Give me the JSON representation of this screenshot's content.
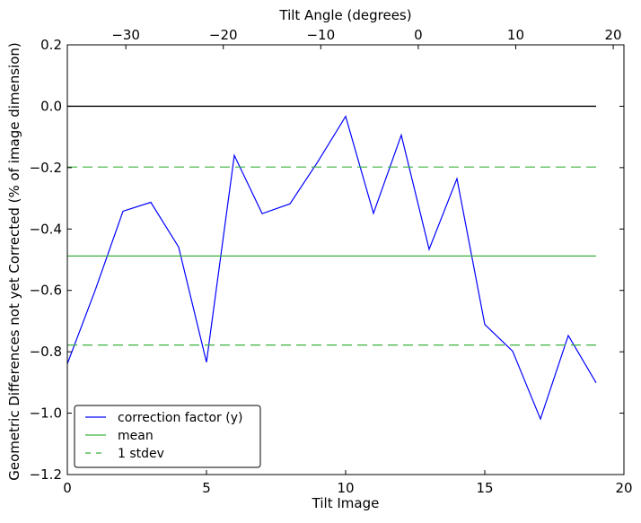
{
  "chart_data": {
    "type": "line",
    "xlabel": "Tilt Image",
    "ylabel": "Geometric Differences not yet Corrected (% of image dimension)",
    "top_xlabel": "Tilt Angle (degrees)",
    "xlim": [
      0,
      20
    ],
    "ylim": [
      -1.2,
      0.2
    ],
    "top_xlim": [
      -36,
      21.1
    ],
    "xticks": [
      0,
      5,
      10,
      15,
      20
    ],
    "xtick_labels": [
      "0",
      "5",
      "10",
      "15",
      "20"
    ],
    "yticks": [
      0.2,
      0.0,
      -0.2,
      -0.4,
      -0.6,
      -0.8,
      -1.0,
      -1.2
    ],
    "ytick_labels": [
      "0.2",
      "0.0",
      "−0.2",
      "−0.4",
      "−0.6",
      "−0.8",
      "−1.0",
      "−1.2"
    ],
    "top_xticks": [
      -30,
      -20,
      -10,
      0,
      10,
      20
    ],
    "top_xtick_labels": [
      "−30",
      "−20",
      "−10",
      "0",
      "10",
      "20"
    ],
    "grid": false,
    "legend_placement": "lower-left",
    "series": [
      {
        "name": "correction factor (y)",
        "color": "#0000ff",
        "style": "solid",
        "x": [
          0,
          1,
          2,
          3,
          4,
          5,
          6,
          7,
          8,
          9,
          10,
          11,
          12,
          13,
          14,
          15,
          16,
          17,
          18,
          19
        ],
        "y": [
          -0.839,
          -0.6,
          -0.342,
          -0.313,
          -0.459,
          -0.834,
          -0.16,
          -0.35,
          -0.318,
          -0.181,
          -0.033,
          -0.349,
          -0.094,
          -0.466,
          -0.236,
          -0.711,
          -0.798,
          -1.019,
          -0.747,
          -0.901
        ]
      },
      {
        "name": "mean",
        "color": "#3cb03c",
        "style": "solid",
        "y_const": -0.488,
        "x": [
          0,
          19
        ]
      },
      {
        "name": "1 stdev",
        "color": "#3cb03c",
        "style": "dashed",
        "y_const": [
          -0.198,
          -0.778
        ],
        "x": [
          0,
          19
        ]
      }
    ],
    "reference_line": {
      "y": 0.0,
      "x": [
        0,
        19
      ],
      "color": "#000000"
    }
  }
}
